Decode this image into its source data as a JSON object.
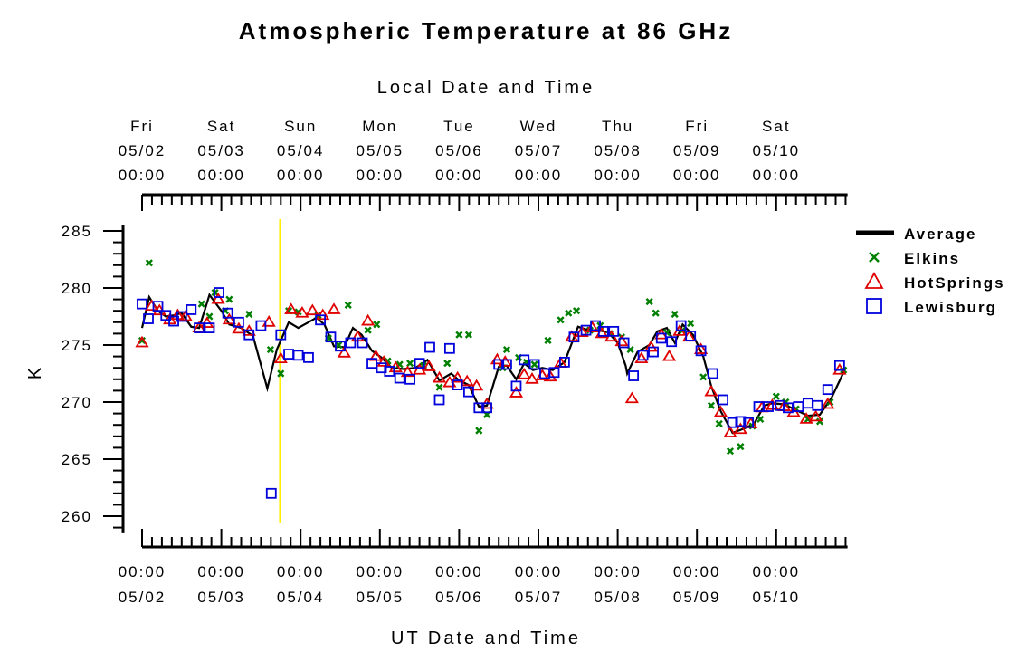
{
  "chart_data": {
    "type": "scatter",
    "title": "Atmospheric Temperature at 86 GHz",
    "xlabel_top": "Local Date and Time",
    "xlabel_bottom": "UT Date and Time",
    "ylabel": "K",
    "ylim": [
      258.5,
      285.5
    ],
    "y_ticks": [
      "285",
      "280",
      "275",
      "270",
      "265",
      "260"
    ],
    "x_unit": "days",
    "xlim": [
      0,
      8.9
    ],
    "marker_line_x": 1.74,
    "marker_line_color": "#ffee00",
    "bottom_ticks": [
      {
        "time": "00:00",
        "date": "05/02"
      },
      {
        "time": "00:00",
        "date": "05/03"
      },
      {
        "time": "00:00",
        "date": "05/04"
      },
      {
        "time": "00:00",
        "date": "05/05"
      },
      {
        "time": "00:00",
        "date": "05/06"
      },
      {
        "time": "00:00",
        "date": "05/07"
      },
      {
        "time": "00:00",
        "date": "05/08"
      },
      {
        "time": "00:00",
        "date": "05/09"
      },
      {
        "time": "00:00",
        "date": "05/10"
      }
    ],
    "top_ticks": [
      {
        "day": "Fri",
        "date": "05/02",
        "time": "00:00"
      },
      {
        "day": "Sat",
        "date": "05/03",
        "time": "00:00"
      },
      {
        "day": "Sun",
        "date": "05/04",
        "time": "00:00"
      },
      {
        "day": "Mon",
        "date": "05/05",
        "time": "00:00"
      },
      {
        "day": "Tue",
        "date": "05/06",
        "time": "00:00"
      },
      {
        "day": "Wed",
        "date": "05/07",
        "time": "00:00"
      },
      {
        "day": "Thu",
        "date": "05/08",
        "time": "00:00"
      },
      {
        "day": "Fri",
        "date": "05/09",
        "time": "00:00"
      },
      {
        "day": "Sat",
        "date": "05/10",
        "time": "00:00"
      }
    ],
    "legend_placement": "right",
    "series": [
      {
        "name": "Average",
        "marker": "line",
        "color": "#000000",
        "points": [
          [
            0.0,
            276.5
          ],
          [
            0.09,
            279.2
          ],
          [
            0.2,
            278.0
          ],
          [
            0.3,
            277.5
          ],
          [
            0.4,
            277.6
          ],
          [
            0.5,
            277.8
          ],
          [
            0.62,
            276.6
          ],
          [
            0.72,
            276.5
          ],
          [
            0.85,
            279.4
          ],
          [
            1.0,
            278.0
          ],
          [
            1.1,
            276.8
          ],
          [
            1.25,
            276.5
          ],
          [
            1.4,
            275.8
          ],
          [
            1.58,
            271.2
          ],
          [
            1.7,
            274.6
          ],
          [
            1.85,
            277.0
          ],
          [
            1.97,
            276.5
          ],
          [
            2.1,
            277.0
          ],
          [
            2.2,
            277.4
          ],
          [
            2.3,
            276.8
          ],
          [
            2.42,
            274.9
          ],
          [
            2.55,
            274.8
          ],
          [
            2.66,
            276.5
          ],
          [
            2.77,
            275.9
          ],
          [
            2.9,
            274.5
          ],
          [
            3.02,
            273.9
          ],
          [
            3.15,
            273.0
          ],
          [
            3.3,
            272.9
          ],
          [
            3.45,
            273.0
          ],
          [
            3.6,
            273.7
          ],
          [
            3.75,
            271.9
          ],
          [
            3.9,
            272.5
          ],
          [
            4.0,
            271.9
          ],
          [
            4.12,
            271.5
          ],
          [
            4.25,
            269.6
          ],
          [
            4.35,
            269.7
          ],
          [
            4.5,
            273.1
          ],
          [
            4.6,
            273.2
          ],
          [
            4.72,
            272.0
          ],
          [
            4.82,
            273.4
          ],
          [
            4.93,
            272.8
          ],
          [
            5.05,
            273.0
          ],
          [
            5.18,
            272.8
          ],
          [
            5.33,
            273.5
          ],
          [
            5.5,
            276.6
          ],
          [
            5.63,
            276.3
          ],
          [
            5.75,
            276.3
          ],
          [
            5.88,
            276.1
          ],
          [
            6.0,
            275.2
          ],
          [
            6.1,
            273.2
          ],
          [
            6.12,
            272.5
          ],
          [
            6.25,
            274.4
          ],
          [
            6.4,
            275.0
          ],
          [
            6.5,
            276.2
          ],
          [
            6.62,
            276.5
          ],
          [
            6.72,
            275.2
          ],
          [
            6.82,
            276.8
          ],
          [
            6.95,
            275.9
          ],
          [
            7.08,
            274.0
          ],
          [
            7.18,
            271.4
          ],
          [
            7.3,
            269.2
          ],
          [
            7.45,
            267.3
          ],
          [
            7.6,
            267.7
          ],
          [
            7.72,
            268.1
          ],
          [
            7.85,
            269.7
          ],
          [
            7.95,
            269.9
          ],
          [
            8.1,
            269.8
          ],
          [
            8.25,
            269.3
          ],
          [
            8.4,
            268.8
          ],
          [
            8.55,
            268.9
          ],
          [
            8.7,
            270.4
          ],
          [
            8.87,
            272.9
          ]
        ]
      },
      {
        "name": "Elkins",
        "marker": "x",
        "color": "#008000",
        "points": [
          [
            0.0,
            275.4
          ],
          [
            0.09,
            282.2
          ],
          [
            0.75,
            278.6
          ],
          [
            0.85,
            277.5
          ],
          [
            0.92,
            279.6
          ],
          [
            1.05,
            278.0
          ],
          [
            1.1,
            279.0
          ],
          [
            1.35,
            277.7
          ],
          [
            1.62,
            274.6
          ],
          [
            1.75,
            272.5
          ],
          [
            1.85,
            278.0
          ],
          [
            1.97,
            277.9
          ],
          [
            2.22,
            277.6
          ],
          [
            2.35,
            275.6
          ],
          [
            2.48,
            275.0
          ],
          [
            2.6,
            278.5
          ],
          [
            2.85,
            276.3
          ],
          [
            2.96,
            276.8
          ],
          [
            3.1,
            273.6
          ],
          [
            3.25,
            273.3
          ],
          [
            3.38,
            273.4
          ],
          [
            3.55,
            273.2
          ],
          [
            3.75,
            271.3
          ],
          [
            3.85,
            273.4
          ],
          [
            4.0,
            275.9
          ],
          [
            4.12,
            275.9
          ],
          [
            4.25,
            267.5
          ],
          [
            4.35,
            268.9
          ],
          [
            4.55,
            273.0
          ],
          [
            4.6,
            274.6
          ],
          [
            4.75,
            273.9
          ],
          [
            4.85,
            273.5
          ],
          [
            4.95,
            273.3
          ],
          [
            5.12,
            275.4
          ],
          [
            5.28,
            277.2
          ],
          [
            5.38,
            277.8
          ],
          [
            5.48,
            278.0
          ],
          [
            5.65,
            276.3
          ],
          [
            5.78,
            276.7
          ],
          [
            5.9,
            276.0
          ],
          [
            6.05,
            275.7
          ],
          [
            6.16,
            274.6
          ],
          [
            6.4,
            278.8
          ],
          [
            6.48,
            277.8
          ],
          [
            6.62,
            276.1
          ],
          [
            6.72,
            277.7
          ],
          [
            6.82,
            276.3
          ],
          [
            6.92,
            276.9
          ],
          [
            7.08,
            272.2
          ],
          [
            7.18,
            269.7
          ],
          [
            7.28,
            268.1
          ],
          [
            7.42,
            265.7
          ],
          [
            7.55,
            266.1
          ],
          [
            7.7,
            267.9
          ],
          [
            7.8,
            268.5
          ],
          [
            8.0,
            270.5
          ],
          [
            8.12,
            270.0
          ],
          [
            8.25,
            269.4
          ],
          [
            8.4,
            268.5
          ],
          [
            8.55,
            268.3
          ],
          [
            8.68,
            270.0
          ],
          [
            8.85,
            272.8
          ]
        ]
      },
      {
        "name": "HotSprings",
        "marker": "triangle",
        "color": "#e00000",
        "points": [
          [
            0.0,
            275.2
          ],
          [
            0.12,
            278.4
          ],
          [
            0.22,
            278.0
          ],
          [
            0.35,
            277.2
          ],
          [
            0.45,
            277.6
          ],
          [
            0.55,
            277.5
          ],
          [
            0.72,
            276.5
          ],
          [
            0.82,
            276.9
          ],
          [
            0.96,
            279.0
          ],
          [
            1.1,
            277.2
          ],
          [
            1.22,
            276.4
          ],
          [
            1.35,
            276.2
          ],
          [
            1.6,
            277.0
          ],
          [
            1.75,
            273.8
          ],
          [
            1.88,
            278.1
          ],
          [
            2.02,
            277.8
          ],
          [
            2.15,
            278.0
          ],
          [
            2.28,
            277.6
          ],
          [
            2.42,
            278.1
          ],
          [
            2.55,
            274.3
          ],
          [
            2.72,
            275.7
          ],
          [
            2.85,
            277.1
          ],
          [
            2.95,
            274.0
          ],
          [
            3.05,
            273.5
          ],
          [
            3.2,
            273.0
          ],
          [
            3.35,
            272.6
          ],
          [
            3.5,
            272.8
          ],
          [
            3.62,
            273.1
          ],
          [
            3.75,
            272.1
          ],
          [
            3.88,
            271.7
          ],
          [
            3.98,
            272.1
          ],
          [
            4.1,
            271.8
          ],
          [
            4.22,
            271.4
          ],
          [
            4.35,
            269.8
          ],
          [
            4.48,
            273.7
          ],
          [
            4.58,
            273.5
          ],
          [
            4.72,
            270.8
          ],
          [
            4.82,
            272.4
          ],
          [
            4.92,
            272.0
          ],
          [
            5.05,
            272.3
          ],
          [
            5.15,
            272.2
          ],
          [
            5.28,
            273.4
          ],
          [
            5.42,
            275.7
          ],
          [
            5.55,
            276.1
          ],
          [
            5.68,
            276.5
          ],
          [
            5.8,
            276.0
          ],
          [
            5.92,
            275.7
          ],
          [
            6.05,
            275.3
          ],
          [
            6.18,
            270.3
          ],
          [
            6.3,
            273.8
          ],
          [
            6.42,
            274.8
          ],
          [
            6.55,
            275.9
          ],
          [
            6.65,
            274.0
          ],
          [
            6.78,
            276.2
          ],
          [
            6.9,
            275.7
          ],
          [
            7.05,
            274.6
          ],
          [
            7.18,
            270.9
          ],
          [
            7.3,
            269.1
          ],
          [
            7.42,
            267.3
          ],
          [
            7.55,
            267.6
          ],
          [
            7.68,
            268.1
          ],
          [
            7.82,
            269.5
          ],
          [
            7.95,
            269.7
          ],
          [
            8.1,
            269.6
          ],
          [
            8.22,
            269.1
          ],
          [
            8.38,
            268.5
          ],
          [
            8.5,
            268.7
          ],
          [
            8.65,
            269.8
          ],
          [
            8.8,
            272.8
          ]
        ]
      },
      {
        "name": "Lewisburg",
        "marker": "square",
        "color": "#0000dd",
        "points": [
          [
            0.0,
            278.6
          ],
          [
            0.08,
            277.3
          ],
          [
            0.2,
            278.4
          ],
          [
            0.3,
            277.6
          ],
          [
            0.4,
            277.1
          ],
          [
            0.5,
            277.5
          ],
          [
            0.62,
            278.1
          ],
          [
            0.72,
            276.5
          ],
          [
            0.85,
            276.5
          ],
          [
            0.97,
            279.6
          ],
          [
            1.08,
            277.8
          ],
          [
            1.22,
            277.0
          ],
          [
            1.35,
            275.9
          ],
          [
            1.5,
            276.7
          ],
          [
            1.63,
            262.0
          ],
          [
            1.75,
            275.9
          ],
          [
            1.85,
            274.2
          ],
          [
            1.97,
            274.1
          ],
          [
            2.1,
            273.9
          ],
          [
            2.25,
            277.2
          ],
          [
            2.38,
            275.7
          ],
          [
            2.5,
            274.9
          ],
          [
            2.63,
            275.2
          ],
          [
            2.78,
            275.2
          ],
          [
            2.9,
            273.4
          ],
          [
            3.02,
            273.0
          ],
          [
            3.12,
            272.7
          ],
          [
            3.25,
            272.1
          ],
          [
            3.38,
            272.0
          ],
          [
            3.5,
            273.4
          ],
          [
            3.63,
            274.8
          ],
          [
            3.75,
            270.2
          ],
          [
            3.88,
            274.7
          ],
          [
            3.98,
            271.5
          ],
          [
            4.12,
            270.9
          ],
          [
            4.25,
            269.5
          ],
          [
            4.35,
            269.5
          ],
          [
            4.5,
            273.3
          ],
          [
            4.6,
            273.3
          ],
          [
            4.72,
            271.4
          ],
          [
            4.82,
            273.7
          ],
          [
            4.95,
            273.3
          ],
          [
            5.08,
            272.5
          ],
          [
            5.2,
            272.6
          ],
          [
            5.33,
            273.5
          ],
          [
            5.45,
            275.7
          ],
          [
            5.6,
            276.3
          ],
          [
            5.72,
            276.7
          ],
          [
            5.82,
            276.2
          ],
          [
            5.95,
            276.2
          ],
          [
            6.08,
            275.2
          ],
          [
            6.2,
            272.3
          ],
          [
            6.32,
            274.1
          ],
          [
            6.45,
            274.4
          ],
          [
            6.55,
            275.6
          ],
          [
            6.68,
            275.3
          ],
          [
            6.8,
            276.7
          ],
          [
            6.92,
            275.8
          ],
          [
            7.05,
            274.5
          ],
          [
            7.2,
            272.5
          ],
          [
            7.33,
            270.2
          ],
          [
            7.45,
            268.2
          ],
          [
            7.55,
            268.3
          ],
          [
            7.65,
            268.2
          ],
          [
            7.78,
            269.6
          ],
          [
            7.9,
            269.6
          ],
          [
            8.05,
            269.7
          ],
          [
            8.15,
            269.5
          ],
          [
            8.28,
            269.6
          ],
          [
            8.4,
            269.9
          ],
          [
            8.52,
            269.7
          ],
          [
            8.65,
            271.1
          ],
          [
            8.8,
            273.2
          ]
        ]
      }
    ]
  }
}
